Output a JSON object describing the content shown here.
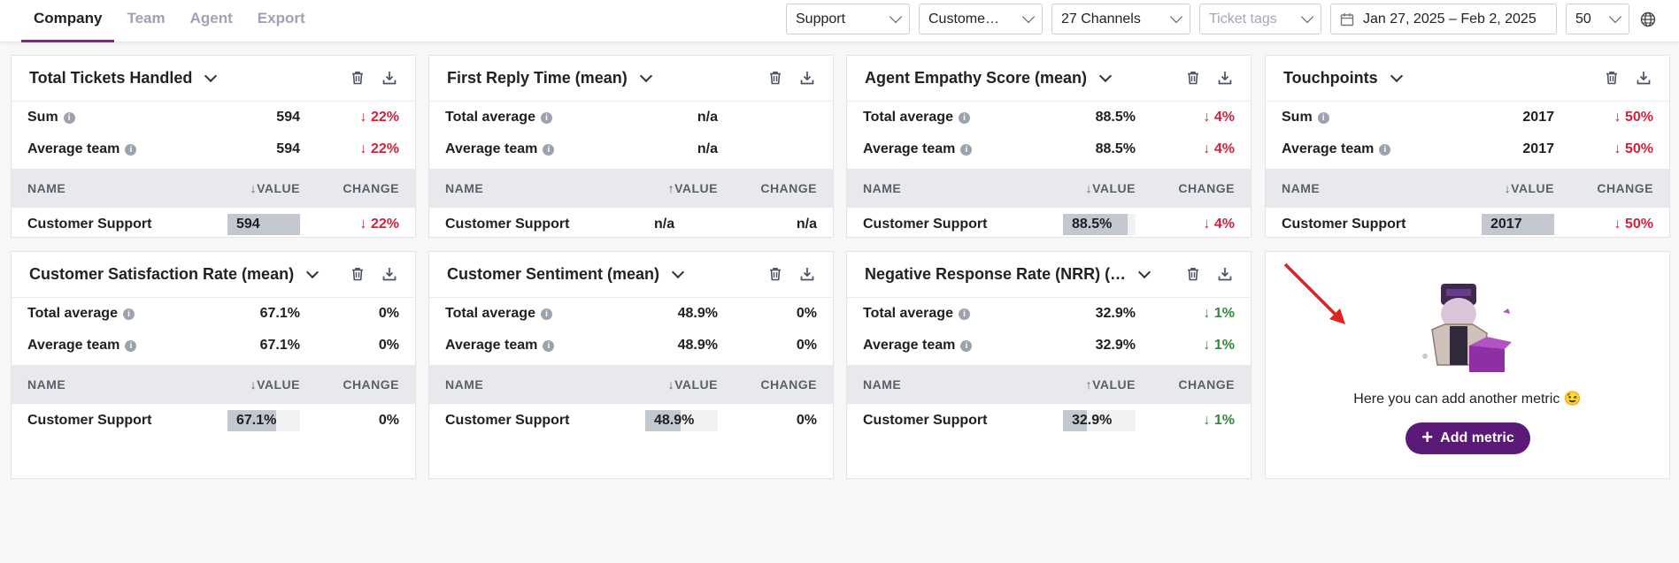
{
  "nav": {
    "tabs": [
      {
        "label": "Company"
      },
      {
        "label": "Team"
      },
      {
        "label": "Agent"
      },
      {
        "label": "Export"
      }
    ]
  },
  "filters": {
    "group": "Support",
    "team": "Custome…",
    "channels": "27 Channels",
    "tags_placeholder": "Ticket tags",
    "date_range": "Jan 27, 2025 – Feb 2, 2025",
    "page_size": "50"
  },
  "colors": {
    "accent": "#8a1e8c",
    "button": "#5b1a78",
    "negative": "#d3213a",
    "positive": "#2f8a3a"
  },
  "table_headers": {
    "name": "NAME",
    "value": "VALUE",
    "change": "CHANGE"
  },
  "cards": [
    {
      "title": "Total Tickets Handled",
      "stats": [
        {
          "label": "Sum",
          "value": "594",
          "change": "↓ 22%"
        },
        {
          "label": "Average team",
          "value": "594",
          "change": "↓ 22%"
        }
      ],
      "sort_dir": "↓",
      "row": {
        "name": "Customer Support",
        "value": "594",
        "fill": 1.0,
        "change": "↓ 22%"
      }
    },
    {
      "title": "First Reply Time (mean)",
      "stats": [
        {
          "label": "Total average",
          "value": "n/a",
          "change": ""
        },
        {
          "label": "Average team",
          "value": "n/a",
          "change": ""
        }
      ],
      "sort_dir": "↑",
      "row": {
        "name": "Customer Support",
        "value": "n/a",
        "fill": 0,
        "change": "n/a"
      }
    },
    {
      "title": "Agent Empathy Score (mean)",
      "stats": [
        {
          "label": "Total average",
          "value": "88.5%",
          "change": "↓ 4%"
        },
        {
          "label": "Average team",
          "value": "88.5%",
          "change": "↓ 4%"
        }
      ],
      "sort_dir": "↓",
      "row": {
        "name": "Customer Support",
        "value": "88.5%",
        "fill": 0.885,
        "change": "↓ 4%"
      }
    },
    {
      "title": "Touchpoints",
      "stats": [
        {
          "label": "Sum",
          "value": "2017",
          "change": "↓ 50%"
        },
        {
          "label": "Average team",
          "value": "2017",
          "change": "↓ 50%"
        }
      ],
      "sort_dir": "↓",
      "row": {
        "name": "Customer Support",
        "value": "2017",
        "fill": 1.0,
        "change": "↓ 50%"
      }
    },
    {
      "title": "Customer Satisfaction Rate (mean)",
      "stats": [
        {
          "label": "Total average",
          "value": "67.1%",
          "change": "0%"
        },
        {
          "label": "Average team",
          "value": "67.1%",
          "change": "0%"
        }
      ],
      "sort_dir": "↓",
      "row": {
        "name": "Customer Support",
        "value": "67.1%",
        "fill": 0.671,
        "change": "0%"
      }
    },
    {
      "title": "Customer Sentiment (mean)",
      "stats": [
        {
          "label": "Total average",
          "value": "48.9%",
          "change": "0%"
        },
        {
          "label": "Average team",
          "value": "48.9%",
          "change": "0%"
        }
      ],
      "sort_dir": "↓",
      "row": {
        "name": "Customer Support",
        "value": "48.9%",
        "fill": 0.489,
        "change": "0%"
      }
    },
    {
      "title": "Negative Response Rate (NRR) (…",
      "stats": [
        {
          "label": "Total average",
          "value": "32.9%",
          "change": "↓ 1%"
        },
        {
          "label": "Average team",
          "value": "32.9%",
          "change": "↓ 1%"
        }
      ],
      "sort_dir": "↑",
      "row": {
        "name": "Customer Support",
        "value": "32.9%",
        "fill": 0.329,
        "change": "↓ 1%"
      }
    }
  ],
  "add_metric": {
    "message": "Here you can add another metric 😉",
    "button_label": "Add metric"
  }
}
